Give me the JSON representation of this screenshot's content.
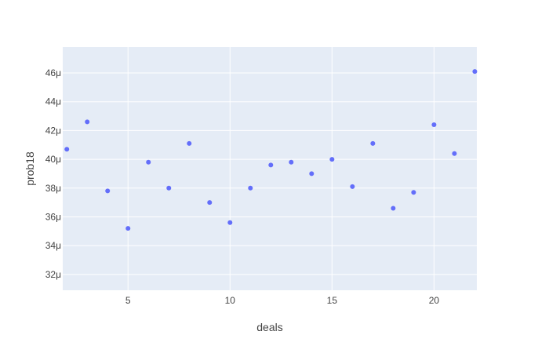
{
  "chart_data": {
    "type": "scatter",
    "xlabel": "deals",
    "ylabel": "prob18",
    "xlim": [
      1.8,
      22.1
    ],
    "ylim": [
      30.9,
      47.8
    ],
    "x_ticks": [
      5,
      10,
      15,
      20
    ],
    "x_tick_labels": [
      "5",
      "10",
      "15",
      "20"
    ],
    "y_ticks": [
      32,
      34,
      36,
      38,
      40,
      42,
      44,
      46
    ],
    "y_tick_labels": [
      "32μ",
      "34μ",
      "36μ",
      "38μ",
      "40μ",
      "42μ",
      "44μ",
      "46μ"
    ],
    "y_unit": "μ",
    "grid": true,
    "legend": false,
    "series": [
      {
        "color": "#636efa",
        "x": [
          2,
          3,
          4,
          5,
          6,
          7,
          8,
          9,
          10,
          11,
          12,
          13,
          14,
          15,
          16,
          17,
          18,
          19,
          20,
          21,
          22
        ],
        "y": [
          40.7,
          42.6,
          37.8,
          35.2,
          39.8,
          38.0,
          41.1,
          37.0,
          35.6,
          38.0,
          39.6,
          39.8,
          39.0,
          40.0,
          38.1,
          41.1,
          36.6,
          37.7,
          42.4,
          40.4,
          46.1
        ]
      }
    ]
  },
  "colors": {
    "plot_bg": "#e5ecf6",
    "grid": "#ffffff",
    "axis_text": "#444444",
    "marker": "#636efa"
  }
}
